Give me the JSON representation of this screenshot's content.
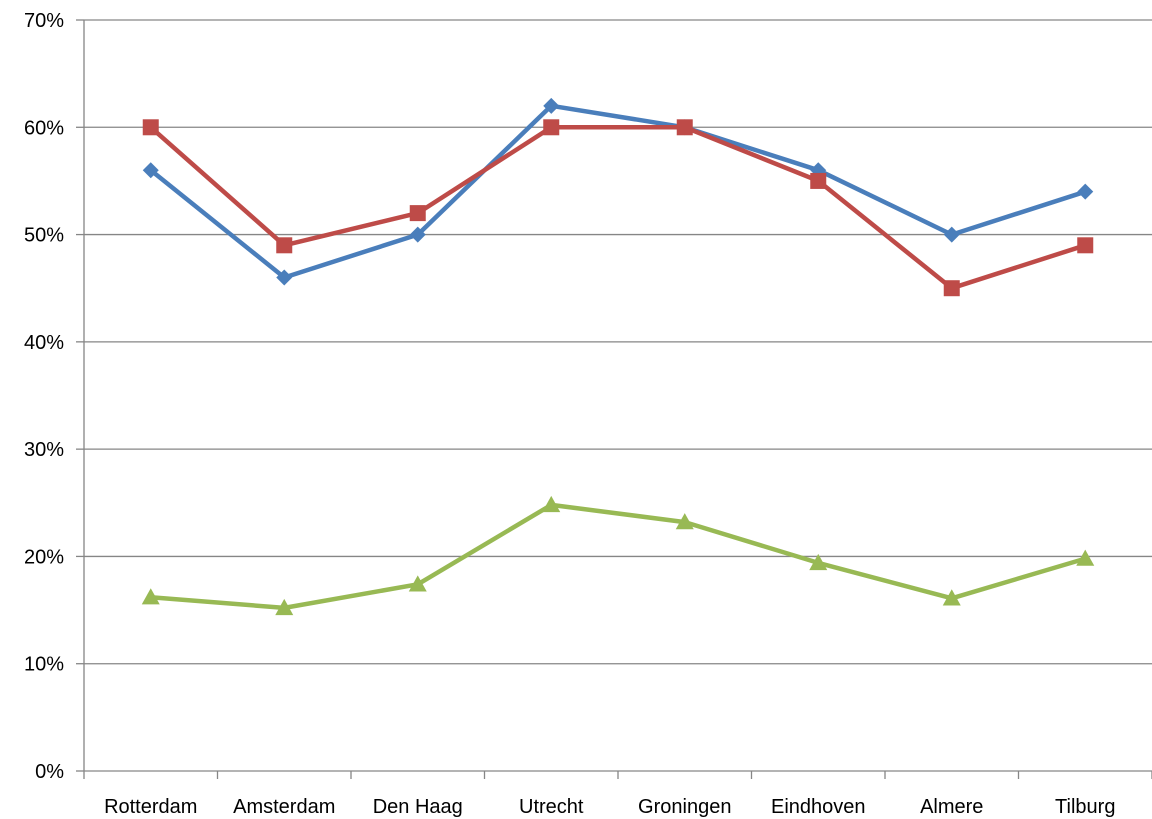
{
  "chart_data": {
    "type": "line",
    "title": "",
    "xlabel": "",
    "ylabel": "",
    "categories": [
      "Rotterdam",
      "Amsterdam",
      "Den Haag",
      "Utrecht",
      "Groningen",
      "Eindhoven",
      "Almere",
      "Tilburg"
    ],
    "y_ticks": [
      "0%",
      "10%",
      "20%",
      "30%",
      "40%",
      "50%",
      "60%",
      "70%"
    ],
    "ylim": [
      0,
      70
    ],
    "y_unit": "%",
    "grid": "horizontal",
    "legend": "none",
    "series": [
      {
        "marker": "diamond",
        "color": "#4A7EBB",
        "values": [
          56,
          46,
          50,
          62,
          60,
          56,
          50,
          54
        ]
      },
      {
        "marker": "square",
        "color": "#BE4B48",
        "values": [
          60,
          49,
          52,
          60,
          60,
          55,
          45,
          49
        ]
      },
      {
        "marker": "triangle",
        "color": "#98B954",
        "values": [
          16.2,
          15.2,
          17.4,
          24.8,
          23.2,
          19.4,
          16.1,
          19.8
        ]
      }
    ]
  }
}
